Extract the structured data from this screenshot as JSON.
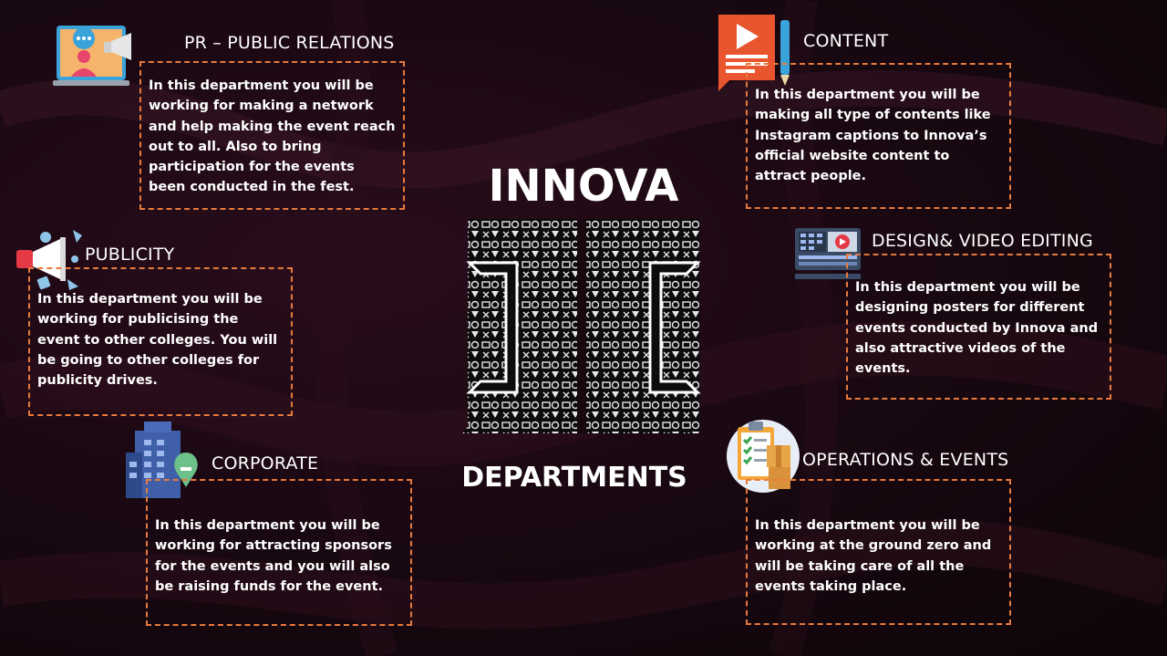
{
  "center": {
    "title": "INNOVA",
    "subtitle": "DEPARTMENTS"
  },
  "departments": {
    "pr": {
      "title": "PR – PUBLIC RELATIONS",
      "description": "In this department you will be working for making a network and help making the event reach out to all. Also to bring participation for the events been conducted in the fest.",
      "icon": "presenter-megaphone-icon"
    },
    "publicity": {
      "title": "PUBLICITY",
      "description": "In this department you will be working for publicising the event to other colleges. You will be going to other colleges for publicity drives.",
      "icon": "megaphone-icon"
    },
    "corporate": {
      "title": "CORPORATE",
      "description": "In this department you will be working for attracting sponsors for the events and you will also be raising funds for the event.",
      "icon": "building-icon"
    },
    "content": {
      "title": "CONTENT",
      "description": "In this department you will be making all type of contents like Instagram captions to Innova’s official website content to attract people.",
      "icon": "content-pen-icon"
    },
    "design": {
      "title": "DESIGN& VIDEO EDITING",
      "description": "In this department you will be designing posters for different events conducted by Innova and also attractive videos of the events.",
      "icon": "video-editor-icon"
    },
    "operations": {
      "title": "OPERATIONS & EVENTS",
      "description": "In this department you will be working at the ground zero and will be taking care of all the events taking place.",
      "icon": "clipboard-checklist-icon"
    }
  },
  "colors": {
    "border": "#e87a3c",
    "background": "#1a0812",
    "text": "#ffffff"
  }
}
